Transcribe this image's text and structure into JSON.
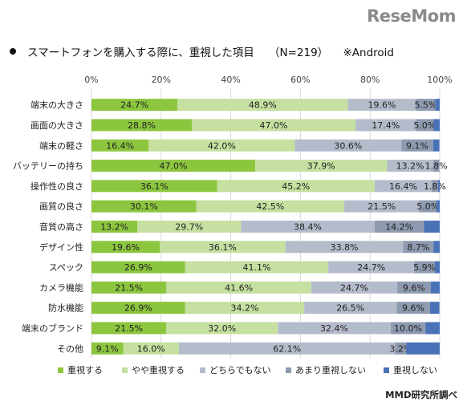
{
  "brand": {
    "logo_text": "ReseMom"
  },
  "header": {
    "title": "スマートフォンを購入する際に、重視した項目",
    "sample": "（N=219）",
    "note": "※Android"
  },
  "footer": {
    "source": "MMD研究所調べ"
  },
  "colors": {
    "series": [
      "#8cc63f",
      "#c5e0a0",
      "#b4bccb",
      "#8e9aaf",
      "#4a72b8"
    ],
    "gridline": "#d9d9d9"
  },
  "chart_data": {
    "type": "bar",
    "orientation": "horizontal",
    "stacked": true,
    "percent_stacked": true,
    "xlim": [
      0,
      100
    ],
    "x_ticks": [
      "0%",
      "20%",
      "40%",
      "60%",
      "80%",
      "100%"
    ],
    "grid": true,
    "legend_position": "bottom",
    "categories": [
      "端末の大きさ",
      "画面の大きさ",
      "端末の軽さ",
      "バッテリーの持ち",
      "操作性の良さ",
      "画質の良さ",
      "音質の高さ",
      "デザイン性",
      "スペック",
      "カメラ機能",
      "防水機能",
      "端末のブランド",
      "その他"
    ],
    "series": [
      {
        "name": "重視する",
        "values": [
          24.7,
          28.8,
          16.4,
          47.0,
          36.1,
          30.1,
          13.2,
          19.6,
          26.9,
          21.5,
          26.9,
          21.5,
          9.1
        ]
      },
      {
        "name": "やや重視する",
        "values": [
          48.9,
          47.0,
          42.0,
          37.9,
          45.2,
          42.5,
          29.7,
          36.1,
          41.1,
          41.6,
          34.2,
          32.0,
          16.0
        ]
      },
      {
        "name": "どちらでもない",
        "values": [
          19.6,
          17.4,
          30.6,
          13.2,
          16.4,
          21.5,
          38.4,
          33.8,
          24.7,
          24.7,
          26.5,
          32.4,
          62.1
        ]
      },
      {
        "name": "あまり重視しない",
        "values": [
          5.5,
          5.0,
          9.1,
          1.8,
          1.8,
          5.0,
          14.2,
          8.7,
          5.9,
          9.6,
          9.6,
          10.0,
          3.2
        ]
      },
      {
        "name": "重視しない",
        "values": [
          1.4,
          1.8,
          1.8,
          0.0,
          0.5,
          0.9,
          4.6,
          1.8,
          1.4,
          2.7,
          2.7,
          4.1,
          9.6
        ]
      }
    ],
    "data_labels": [
      [
        "24.7%",
        "28.8%",
        "16.4%",
        "47.0%",
        "36.1%",
        "30.1%",
        "13.2%",
        "19.6%",
        "26.9%",
        "21.5%",
        "26.9%",
        "21.5%",
        "9.1%"
      ],
      [
        "48.9%",
        "47.0%",
        "42.0%",
        "37.9%",
        "45.2%",
        "42.5%",
        "29.7%",
        "36.1%",
        "41.1%",
        "41.6%",
        "34.2%",
        "32.0%",
        "16.0%"
      ],
      [
        "19.6%",
        "17.4%",
        "30.6%",
        "13.2%",
        "16.4%",
        "21.5%",
        "38.4%",
        "33.8%",
        "24.7%",
        "24.7%",
        "26.5%",
        "32.4%",
        "62.1%"
      ],
      [
        "5.5%",
        "5.0%",
        "9.1%",
        "1.8%",
        "1.8%",
        "5.0%",
        "14.2%",
        "8.7%",
        "5.9%",
        "9.6%",
        "9.6%",
        "10.0%",
        "3.2%"
      ],
      [
        "",
        "",
        "",
        "",
        "",
        "",
        "",
        "",
        "",
        "",
        "",
        "",
        ""
      ]
    ]
  }
}
